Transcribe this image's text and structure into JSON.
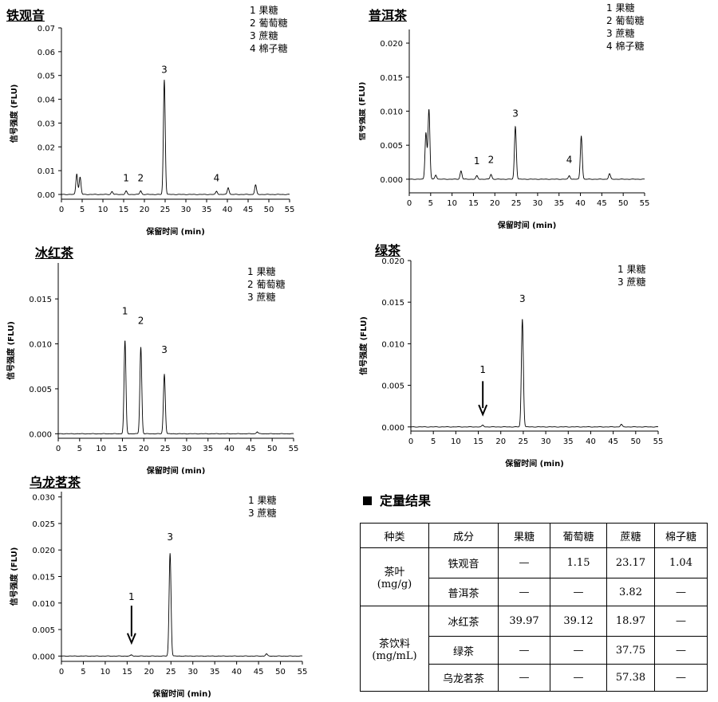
{
  "legend_labels": {
    "1": "果糖",
    "2": "葡萄糖",
    "3": "蔗糖",
    "4": "棉子糖"
  },
  "chart_data": [
    {
      "id": "tieguanyin",
      "type": "line",
      "title": "铁观音",
      "xlabel": "保留时间 (min)",
      "ylabel": "信号强度 (FLU)",
      "xlim": [
        0,
        55
      ],
      "ylim": [
        -0.002,
        0.07
      ],
      "xticks": [
        0,
        5,
        10,
        15,
        20,
        25,
        30,
        35,
        40,
        45,
        50,
        55
      ],
      "yticks": [
        0.0,
        0.01,
        0.02,
        0.03,
        0.04,
        0.05,
        0.06,
        0.07
      ],
      "ytick_labels": [
        "0.00",
        "0.01",
        "0.02",
        "0.03",
        "0.04",
        "0.05",
        "0.06",
        "0.07"
      ],
      "legend": [
        "1",
        "2",
        "3",
        "4"
      ],
      "peaks": [
        {
          "x": 3.7,
          "h": 0.0085
        },
        {
          "x": 4.5,
          "h": 0.0072
        },
        {
          "x": 12.2,
          "h": 0.0012
        },
        {
          "x": 15.6,
          "h": 0.0014
        },
        {
          "x": 19.1,
          "h": 0.0015
        },
        {
          "x": 24.8,
          "h": 0.048
        },
        {
          "x": 37.4,
          "h": 0.0013
        },
        {
          "x": 40.2,
          "h": 0.0028
        },
        {
          "x": 46.8,
          "h": 0.004
        }
      ],
      "labels": [
        {
          "text": "1",
          "x": 15.6,
          "y": 0.0055
        },
        {
          "text": "2",
          "x": 19.1,
          "y": 0.0055
        },
        {
          "text": "3",
          "x": 24.8,
          "y": 0.051
        },
        {
          "text": "4",
          "x": 37.4,
          "y": 0.0055
        }
      ]
    },
    {
      "id": "puer",
      "type": "line",
      "title": "普洱茶",
      "xlabel": "保留时间 (min)",
      "ylabel": "信号强度 (FLU)",
      "xlim": [
        0,
        55
      ],
      "ylim": [
        -0.002,
        0.022
      ],
      "xticks": [
        0,
        5,
        10,
        15,
        20,
        25,
        30,
        35,
        40,
        45,
        50,
        55
      ],
      "yticks": [
        0.0,
        0.005,
        0.01,
        0.015,
        0.02
      ],
      "ytick_labels": [
        "0.000",
        "0.005",
        "0.010",
        "0.015",
        "0.020"
      ],
      "legend": [
        "1",
        "2",
        "3",
        "4"
      ],
      "peaks": [
        {
          "x": 3.9,
          "h": 0.0068
        },
        {
          "x": 4.6,
          "h": 0.0102
        },
        {
          "x": 6.2,
          "h": 0.0006
        },
        {
          "x": 12.1,
          "h": 0.0012
        },
        {
          "x": 15.8,
          "h": 0.0005
        },
        {
          "x": 19.1,
          "h": 0.0007
        },
        {
          "x": 24.8,
          "h": 0.0077
        },
        {
          "x": 37.4,
          "h": 0.0005
        },
        {
          "x": 40.2,
          "h": 0.0063
        },
        {
          "x": 46.8,
          "h": 0.0008
        }
      ],
      "labels": [
        {
          "text": "1",
          "x": 15.8,
          "y": 0.0022
        },
        {
          "text": "2",
          "x": 19.1,
          "y": 0.0024
        },
        {
          "text": "3",
          "x": 24.8,
          "y": 0.0092
        },
        {
          "text": "4",
          "x": 37.4,
          "y": 0.0024
        }
      ]
    },
    {
      "id": "binghongcha",
      "type": "line",
      "title": "冰红茶",
      "xlabel": "保留时间 (min)",
      "ylabel": "信号强度 (FLU)",
      "xlim": [
        0,
        55
      ],
      "ylim": [
        -0.0005,
        0.019
      ],
      "xticks": [
        0,
        5,
        10,
        15,
        20,
        25,
        30,
        35,
        40,
        45,
        50,
        55
      ],
      "yticks": [
        0.0,
        0.005,
        0.01,
        0.015
      ],
      "ytick_labels": [
        "0.000",
        "0.005",
        "0.010",
        "0.015"
      ],
      "legend": [
        "1",
        "2",
        "3"
      ],
      "peaks": [
        {
          "x": 15.6,
          "h": 0.0103
        },
        {
          "x": 19.3,
          "h": 0.0096
        },
        {
          "x": 24.8,
          "h": 0.0066
        },
        {
          "x": 46.5,
          "h": 0.0002
        }
      ],
      "labels": [
        {
          "text": "1",
          "x": 15.6,
          "y": 0.0133
        },
        {
          "text": "2",
          "x": 19.3,
          "y": 0.0122
        },
        {
          "text": "3",
          "x": 24.8,
          "y": 0.009
        }
      ]
    },
    {
      "id": "lvcha",
      "type": "line",
      "title": "绿茶",
      "xlabel": "保留时间 (min)",
      "ylabel": "信号强度 (FLU)",
      "xlim": [
        0,
        55
      ],
      "ylim": [
        -0.0005,
        0.02
      ],
      "xticks": [
        0,
        5,
        10,
        15,
        20,
        25,
        30,
        35,
        40,
        45,
        50,
        55
      ],
      "yticks": [
        0.0,
        0.005,
        0.01,
        0.015,
        0.02
      ],
      "ytick_labels": [
        "0.000",
        "0.005",
        "0.010",
        "0.015",
        "0.020"
      ],
      "legend": [
        "1",
        "3"
      ],
      "peaks": [
        {
          "x": 16.0,
          "h": 0.0002
        },
        {
          "x": 24.8,
          "h": 0.0129
        },
        {
          "x": 46.8,
          "h": 0.0003
        }
      ],
      "labels": [
        {
          "text": "1",
          "x": 16.0,
          "y": 0.0065
        },
        {
          "text": "3",
          "x": 24.8,
          "y": 0.015
        }
      ],
      "arrow": {
        "x": 16.0,
        "y_top": 0.0055,
        "y_bottom": 0.0015
      }
    },
    {
      "id": "wulongmingcha",
      "type": "line",
      "title": "乌龙茗茶",
      "xlabel": "保留时间 (min)",
      "ylabel": "信号强度 (FLU)",
      "xlim": [
        0,
        55
      ],
      "ylim": [
        -0.001,
        0.031
      ],
      "xticks": [
        0,
        5,
        10,
        15,
        20,
        25,
        30,
        35,
        40,
        45,
        50,
        55
      ],
      "yticks": [
        0.0,
        0.005,
        0.01,
        0.015,
        0.02,
        0.025,
        0.03
      ],
      "ytick_labels": [
        "0.000",
        "0.005",
        "0.010",
        "0.015",
        "0.020",
        "0.025",
        "0.030"
      ],
      "legend": [
        "1",
        "3"
      ],
      "peaks": [
        {
          "x": 16.0,
          "h": 0.0002
        },
        {
          "x": 24.8,
          "h": 0.0193
        },
        {
          "x": 46.8,
          "h": 0.0004
        }
      ],
      "labels": [
        {
          "text": "1",
          "x": 16.0,
          "y": 0.0106
        },
        {
          "text": "3",
          "x": 24.8,
          "y": 0.0218
        }
      ],
      "arrow": {
        "x": 16.0,
        "y_top": 0.0095,
        "y_bottom": 0.0025
      }
    }
  ],
  "result": {
    "title": "定量结果",
    "headers": [
      "种类",
      "成分",
      "果糖",
      "葡萄糖",
      "蔗糖",
      "棉子糖"
    ],
    "groups": [
      {
        "category": "茶叶",
        "unit": "(mg/g)"
      },
      {
        "category": "茶饮料",
        "unit": "(mg/mL)"
      }
    ],
    "rows": [
      {
        "name": "铁观音",
        "values": [
          "—",
          "1.15",
          "23.17",
          "1.04"
        ]
      },
      {
        "name": "普洱茶",
        "values": [
          "—",
          "—",
          "3.82",
          "—"
        ]
      },
      {
        "name": "冰红茶",
        "values": [
          "39.97",
          "39.12",
          "18.97",
          "—"
        ]
      },
      {
        "name": "绿茶",
        "values": [
          "—",
          "—",
          "37.75",
          "—"
        ]
      },
      {
        "name": "乌龙茗茶",
        "values": [
          "—",
          "—",
          "57.38",
          "—"
        ]
      }
    ]
  }
}
